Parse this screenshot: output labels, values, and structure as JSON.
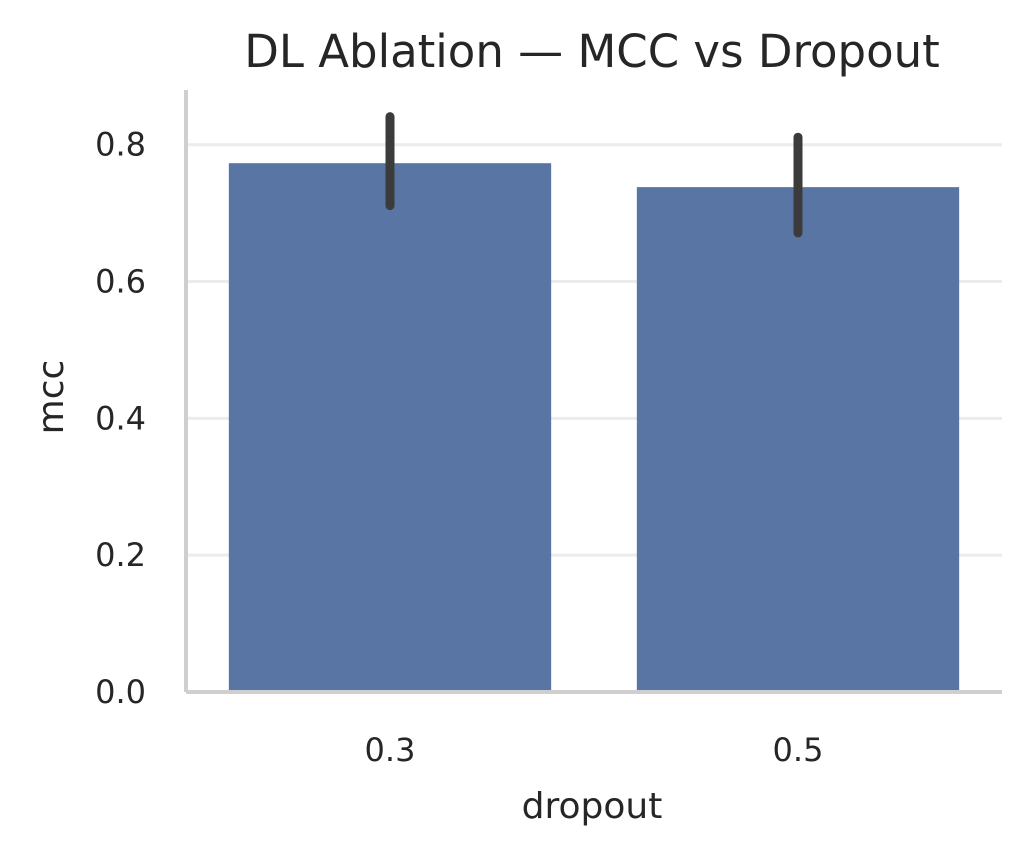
{
  "chart_data": {
    "type": "bar",
    "title": "DL Ablation — MCC vs Dropout",
    "xlabel": "dropout",
    "ylabel": "mcc",
    "categories": [
      "0.3",
      "0.5"
    ],
    "values": [
      0.773,
      0.738
    ],
    "error_bars": [
      {
        "low": 0.711,
        "high": 0.841
      },
      {
        "low": 0.671,
        "high": 0.811
      }
    ],
    "ylim": [
      0,
      0.88
    ],
    "yticks": [
      0.0,
      0.2,
      0.4,
      0.6,
      0.8
    ],
    "ytick_labels": [
      "0.0",
      "0.2",
      "0.4",
      "0.6",
      "0.8"
    ],
    "grid": "horizontal",
    "legend": "none",
    "colors": {
      "bar": "#5875a4",
      "errbar": "#3b3b3b",
      "grid": "#ececec",
      "spine": "#cfcfcf",
      "text": "#262626"
    }
  }
}
